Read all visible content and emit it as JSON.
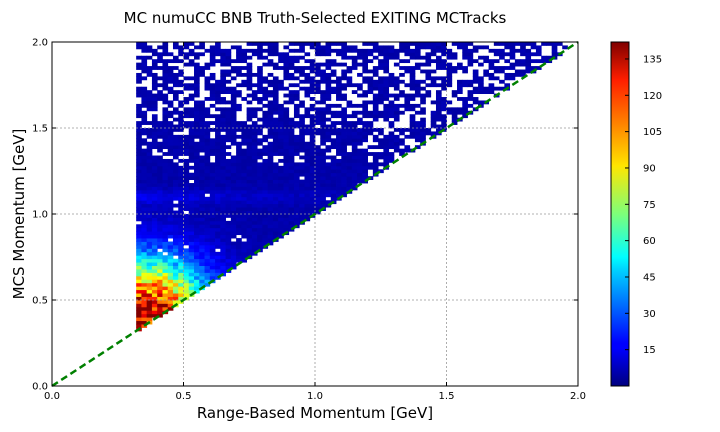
{
  "chart_data": {
    "type": "heatmap",
    "title": "MC numuCC BNB Truth-Selected EXITING MCTracks",
    "xlabel": "Range-Based Momentum [GeV]",
    "ylabel": "MCS Momentum [GeV]",
    "xlim": [
      0.0,
      2.0
    ],
    "ylim": [
      0.0,
      2.0
    ],
    "x_ticks": [
      "0.0",
      "0.5",
      "1.0",
      "1.5",
      "2.0"
    ],
    "y_ticks": [
      "0.0",
      "0.5",
      "1.0",
      "1.5",
      "2.0"
    ],
    "grid": true,
    "bins": {
      "nx": 100,
      "ny": 100,
      "x_range": [
        0.0,
        2.0
      ],
      "y_range": [
        0.0,
        2.0
      ]
    },
    "populated_region": {
      "x_min": 0.32,
      "lower_boundary": "y = x",
      "upper_boundary": "y = 2.0",
      "peak": {
        "x": 0.36,
        "y": 0.42,
        "count": 140
      }
    },
    "reference_line": {
      "label": "y = x",
      "style": "dashed",
      "color": "#008000",
      "from": [
        0.0,
        0.0
      ],
      "to": [
        2.0,
        2.0
      ]
    },
    "colorbar": {
      "min": 0,
      "max": 142,
      "ticks": [
        "15",
        "30",
        "45",
        "60",
        "75",
        "90",
        "105",
        "120",
        "135"
      ],
      "colormap": "jet"
    }
  }
}
